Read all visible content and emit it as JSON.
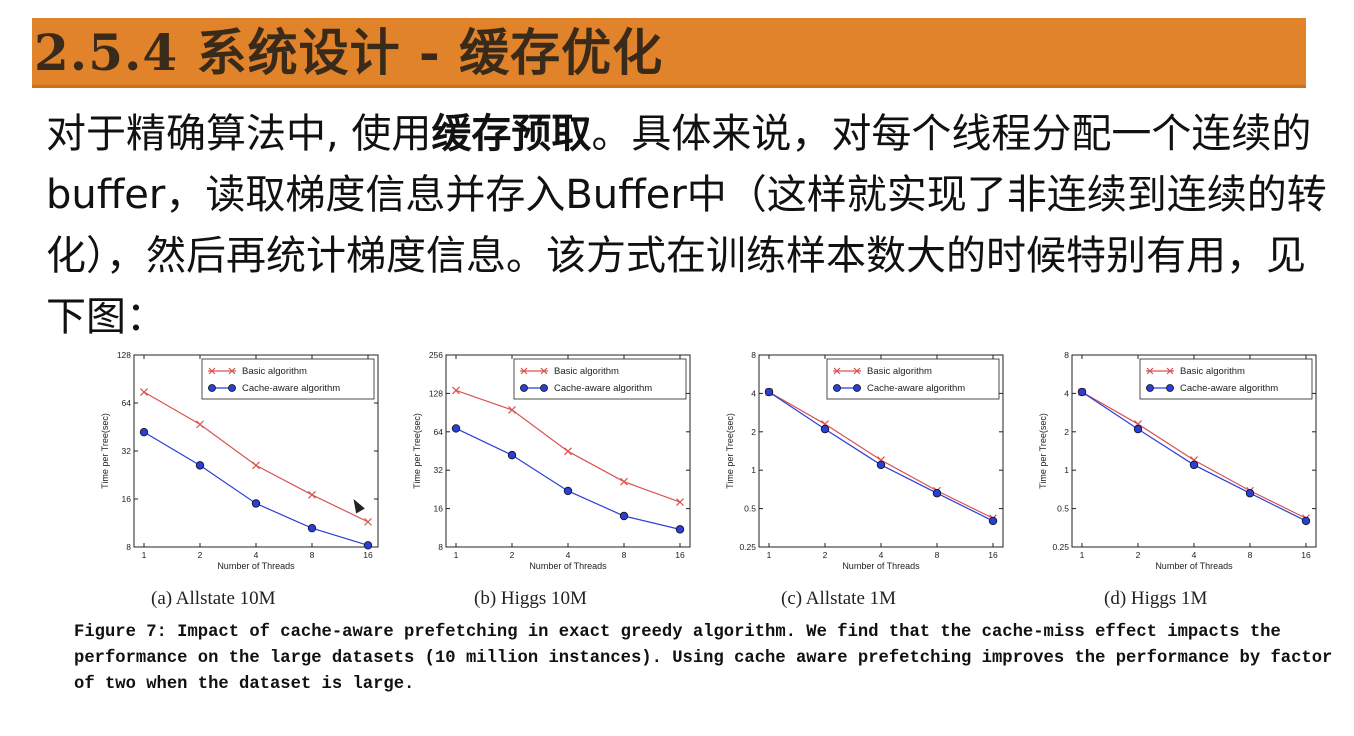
{
  "slide": {
    "title": "2.5.4 系统设计 - 缓存优化",
    "body_pre": "对于精确算法中, 使用",
    "body_bold": "缓存预取",
    "body_post": "。具体来说，对每个线程分配一个连续的buffer，读取梯度信息并存入Buffer中（这样就实现了非连续到连续的转化），然后再统计梯度信息。该方式在训练样本数大的时候特别有用，见下图：",
    "figure_caption": "Figure 7: Impact of cache-aware prefetching in exact greedy algorithm. We find that the cache-miss effect impacts the performance on the large datasets (10 million instances). Using cache aware prefetching improves the performance by factor of two when the dataset is large."
  },
  "colors": {
    "title_bar": "#e0832a",
    "basic": "#d9534f",
    "cache": "#2a3fd6"
  },
  "chart_data": [
    {
      "type": "line",
      "caption": "(a) Allstate 10M",
      "xlabel": "Number of Threads",
      "ylabel": "Time per Tree(sec)",
      "x": [
        1,
        2,
        4,
        8,
        16
      ],
      "x_ticks": [
        "1",
        "2",
        "4",
        "8",
        "16"
      ],
      "y_ticks": [
        "8",
        "16",
        "32",
        "64",
        "128"
      ],
      "ylim": [
        8,
        128
      ],
      "yscale": "log2",
      "series": [
        {
          "name": "Basic algorithm",
          "marker": "x",
          "values": [
            75,
            47,
            26,
            17,
            11.5
          ]
        },
        {
          "name": "Cache-aware algorithm",
          "marker": "o",
          "values": [
            42,
            26,
            15,
            10.5,
            8.2
          ]
        }
      ],
      "legend": "top-right"
    },
    {
      "type": "line",
      "caption": "(b) Higgs 10M",
      "xlabel": "Number of Threads",
      "ylabel": "Time per Tree(sec)",
      "x": [
        1,
        2,
        4,
        8,
        16
      ],
      "x_ticks": [
        "1",
        "2",
        "4",
        "8",
        "16"
      ],
      "y_ticks": [
        "8",
        "16",
        "32",
        "64",
        "128",
        "256"
      ],
      "ylim": [
        8,
        256
      ],
      "yscale": "log2",
      "series": [
        {
          "name": "Basic algorithm",
          "marker": "x",
          "values": [
            135,
            95,
            45,
            26,
            18
          ]
        },
        {
          "name": "Cache-aware algorithm",
          "marker": "o",
          "values": [
            68,
            42,
            22,
            14,
            11
          ]
        }
      ],
      "legend": "top-right"
    },
    {
      "type": "line",
      "caption": "(c) Allstate 1M",
      "xlabel": "Number of Threads",
      "ylabel": "Time per Tree(sec)",
      "x": [
        1,
        2,
        4,
        8,
        16
      ],
      "x_ticks": [
        "1",
        "2",
        "4",
        "8",
        "16"
      ],
      "y_ticks": [
        "0.25",
        "0.5",
        "1",
        "2",
        "4",
        "8"
      ],
      "ylim": [
        0.25,
        8
      ],
      "yscale": "log2",
      "series": [
        {
          "name": "Basic algorithm",
          "marker": "x",
          "values": [
            4.1,
            2.3,
            1.2,
            0.69,
            0.42
          ]
        },
        {
          "name": "Cache-aware algorithm",
          "marker": "o",
          "values": [
            4.1,
            2.1,
            1.1,
            0.66,
            0.4
          ]
        }
      ],
      "legend": "top-right"
    },
    {
      "type": "line",
      "caption": "(d) Higgs 1M",
      "xlabel": "Number of Threads",
      "ylabel": "Time per Tree(sec)",
      "x": [
        1,
        2,
        4,
        8,
        16
      ],
      "x_ticks": [
        "1",
        "2",
        "4",
        "8",
        "16"
      ],
      "y_ticks": [
        "0.25",
        "0.5",
        "1",
        "2",
        "4",
        "8"
      ],
      "ylim": [
        0.25,
        8
      ],
      "yscale": "log2",
      "series": [
        {
          "name": "Basic algorithm",
          "marker": "x",
          "values": [
            4.1,
            2.3,
            1.2,
            0.69,
            0.42
          ]
        },
        {
          "name": "Cache-aware algorithm",
          "marker": "o",
          "values": [
            4.1,
            2.1,
            1.1,
            0.66,
            0.4
          ]
        }
      ],
      "legend": "top-right"
    }
  ]
}
